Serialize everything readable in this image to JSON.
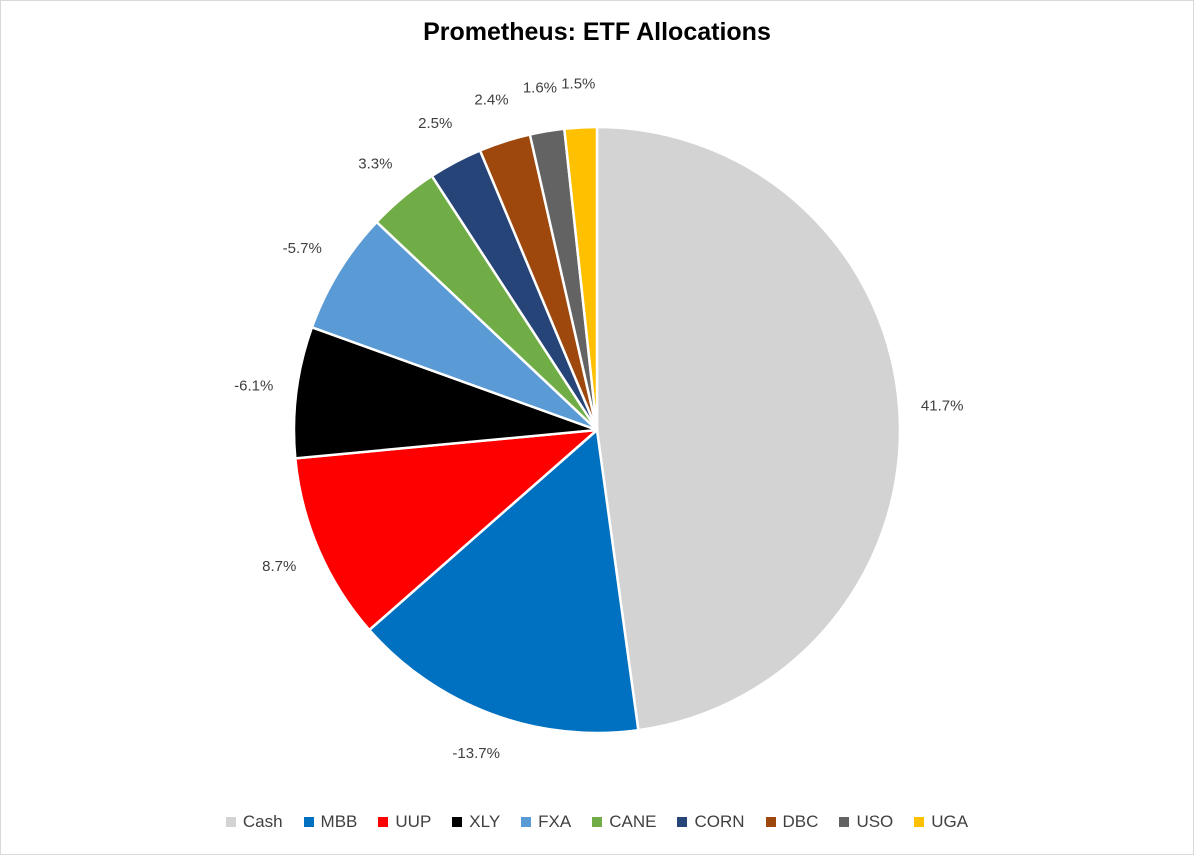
{
  "chart_data": {
    "type": "pie",
    "title": "Prometheus: ETF Allocations",
    "legend_position": "bottom",
    "slices": [
      {
        "name": "Cash",
        "value": 41.7,
        "label": "41.7%",
        "color": "#d3d3d3"
      },
      {
        "name": "MBB",
        "value": 13.7,
        "label": "-13.7%",
        "color": "#0070c0"
      },
      {
        "name": "UUP",
        "value": 8.7,
        "label": "8.7%",
        "color": "#ff0000"
      },
      {
        "name": "XLY",
        "value": 6.1,
        "label": "-6.1%",
        "color": "#000000"
      },
      {
        "name": "FXA",
        "value": 5.7,
        "label": "-5.7%",
        "color": "#5b9bd5"
      },
      {
        "name": "CANE",
        "value": 3.3,
        "label": "3.3%",
        "color": "#70ad47"
      },
      {
        "name": "CORN",
        "value": 2.5,
        "label": "2.5%",
        "color": "#264478"
      },
      {
        "name": "DBC",
        "value": 2.4,
        "label": "2.4%",
        "color": "#9e480e"
      },
      {
        "name": "USO",
        "value": 1.6,
        "label": "1.6%",
        "color": "#636363"
      },
      {
        "name": "UGA",
        "value": 1.5,
        "label": "1.5%",
        "color": "#ffc000"
      }
    ]
  }
}
